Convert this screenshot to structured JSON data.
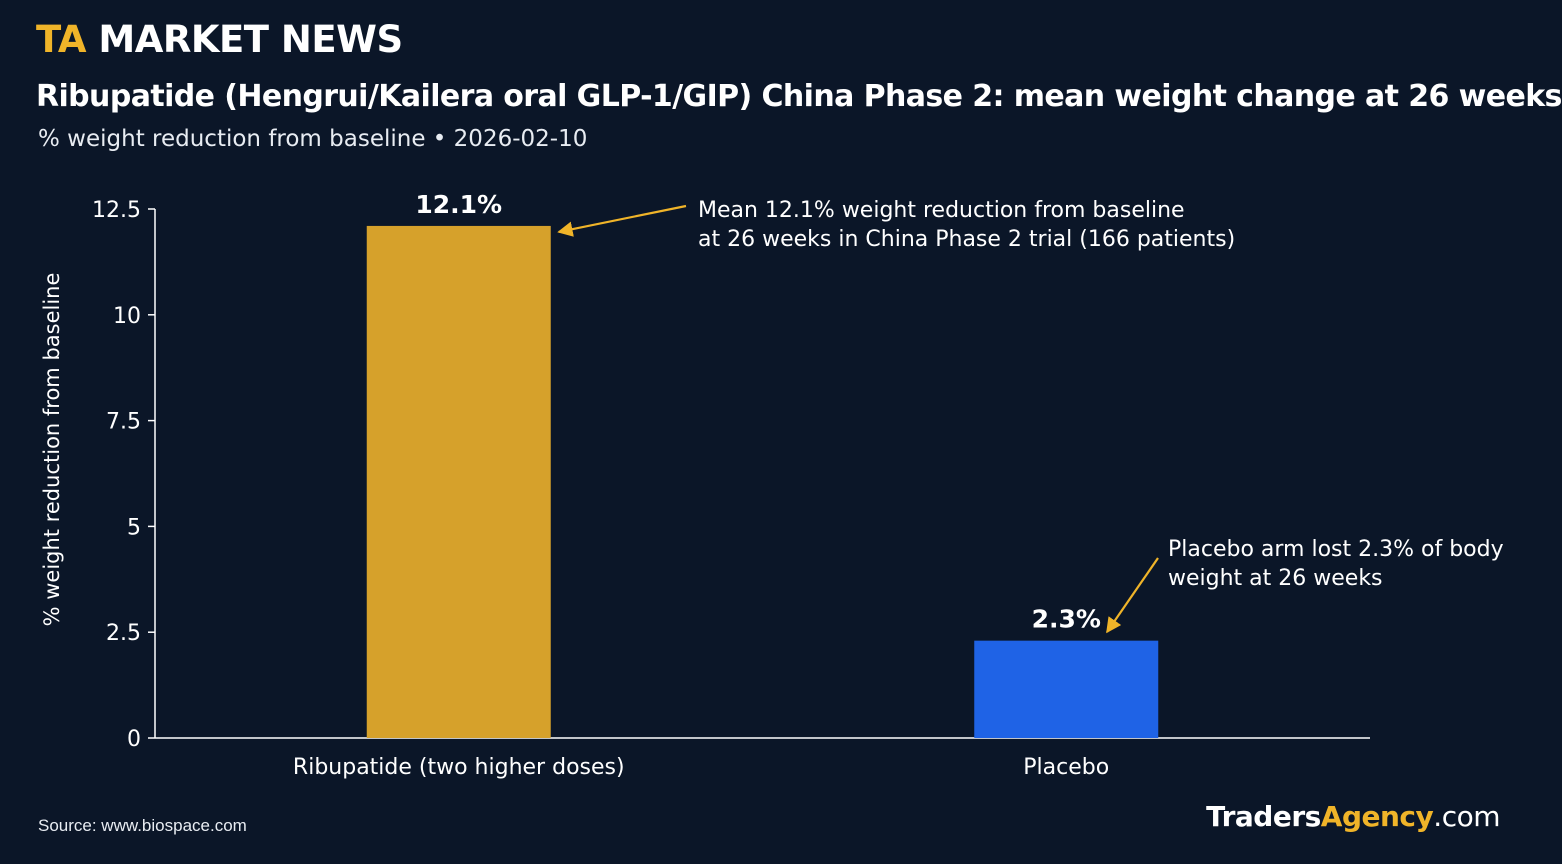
{
  "header": {
    "brand_ta": "TA",
    "brand_rest": "MARKET NEWS",
    "title": "Ribupatide (Hengrui/Kailera oral GLP-1/GIP) China Phase 2: mean weight change at 26 weeks",
    "subtitle": "% weight reduction from baseline • 2026-02-10"
  },
  "footer": {
    "source": "Source: www.biospace.com",
    "logo_part1": "Traders",
    "logo_part2": "Agency",
    "logo_part3": ".com"
  },
  "colors": {
    "background": "#0b1628",
    "accent": "#f0b429",
    "bar_ribupatide": "#d6a12b",
    "bar_placebo": "#1f63e6",
    "annotation_arrow": "#f0b429"
  },
  "chart_data": {
    "type": "bar",
    "categories": [
      "Ribupatide (two higher doses)",
      "Placebo"
    ],
    "values": [
      12.1,
      2.3
    ],
    "data_labels": [
      "12.1%",
      "2.3%"
    ],
    "title": "Ribupatide (Hengrui/Kailera oral GLP-1/GIP) China Phase 2: mean weight change at 26 weeks",
    "subtitle": "% weight reduction from baseline • 2026-02-10",
    "xlabel": "",
    "ylabel": "% weight reduction from baseline",
    "ylim": [
      0,
      12.5
    ],
    "yticks": [
      0,
      2.5,
      5,
      7.5,
      10,
      12.5
    ],
    "ytick_labels": [
      "0",
      "2.5",
      "5",
      "7.5",
      "10",
      "12.5"
    ],
    "grid": false,
    "annotations": [
      {
        "target": "Ribupatide (two higher doses)",
        "lines": [
          "Mean 12.1% weight reduction from baseline",
          "at 26 weeks in China Phase 2 trial (166 patients)"
        ]
      },
      {
        "target": "Placebo",
        "lines": [
          "Placebo arm lost 2.3% of body",
          "weight at 26 weeks"
        ]
      }
    ]
  }
}
